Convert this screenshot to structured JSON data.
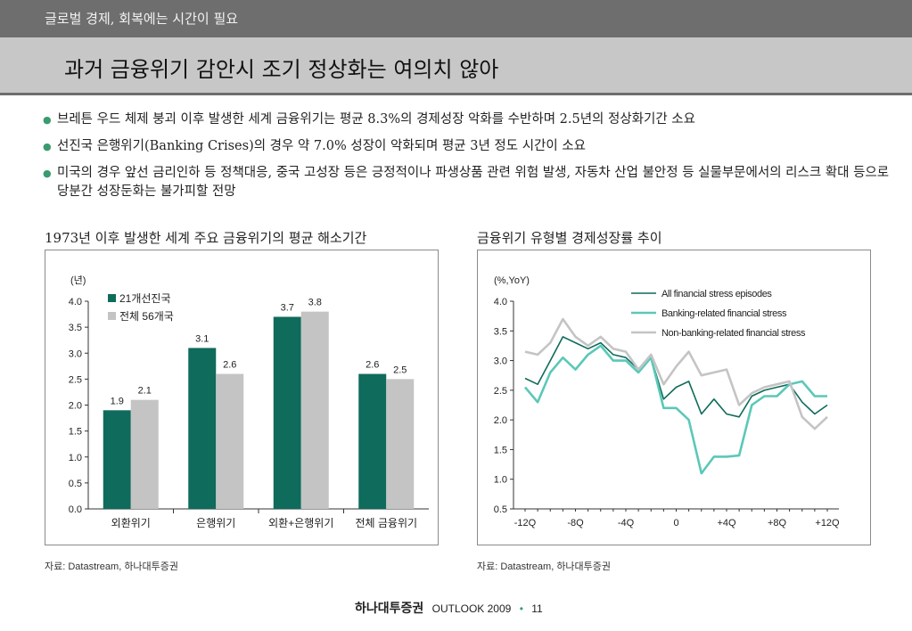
{
  "header": {
    "section": "글로벌 경제, 회복에는 시간이 필요",
    "title": "과거 금융위기 감안시 조기 정상화는 여의치 않아"
  },
  "bullets": [
    "브레튼 우드 체제 붕괴 이후 발생한 세계 금융위기는 평균 8.3%의 경제성장 악화를 수반하며 2.5년의 정상화기간 소요",
    "선진국 은행위기(Banking Crises)의 경우 약 7.0% 성장이 악화되며 평균 3년 정도 시간이 소요",
    "미국의 경우 앞선 금리인하 등 정책대응, 중국 고성장 등은 긍정적이나 파생상품 관련 위험 발생, 자동차 산업 불안정 등 실물부문에서의 리스크 확대 등으로 당분간 성장둔화는 불가피할 전망"
  ],
  "chart_data": [
    {
      "type": "bar",
      "title": "1973년 이후 발생한 세계 주요 금융위기의 평균 해소기간",
      "ylabel": "(년)",
      "categories": [
        "외환위기",
        "은행위기",
        "외환+은행위기",
        "전체 금융위기"
      ],
      "series": [
        {
          "name": "21개선진국",
          "values": [
            1.9,
            3.1,
            3.7,
            2.6
          ],
          "color": "#0f6b5b"
        },
        {
          "name": "전체 56개국",
          "values": [
            2.1,
            2.6,
            3.8,
            2.5
          ],
          "color": "#c4c4c4"
        }
      ],
      "ylim": [
        0,
        4
      ],
      "yticks": [
        "0.0",
        "0.5",
        "1.0",
        "1.5",
        "2.0",
        "2.5",
        "3.0",
        "3.5",
        "4.0"
      ],
      "legend": "top-left",
      "grid": false,
      "source": "자료: Datastream, 하나대투증권"
    },
    {
      "type": "line",
      "title": "금융위기 유형별 경제성장률 추이",
      "ylabel": "(%,YoY)",
      "x": [
        -12,
        -11,
        -10,
        -9,
        -8,
        -7,
        -6,
        -5,
        -4,
        -3,
        -2,
        -1,
        0,
        1,
        2,
        3,
        4,
        5,
        6,
        7,
        8,
        9,
        10,
        11,
        12
      ],
      "xticks": [
        "-12Q",
        "-8Q",
        "-4Q",
        "0",
        "+4Q",
        "+8Q",
        "+12Q"
      ],
      "series": [
        {
          "name": "All financial stress episodes",
          "color": "#0f6b5b",
          "values": [
            2.7,
            2.6,
            3.0,
            3.4,
            3.3,
            3.2,
            3.3,
            3.1,
            3.05,
            2.85,
            3.05,
            2.35,
            2.55,
            2.65,
            2.1,
            2.35,
            2.1,
            2.05,
            2.4,
            2.5,
            2.55,
            2.6,
            2.3,
            2.1,
            2.25
          ]
        },
        {
          "name": "Banking-related financial stress",
          "color": "#5bc8b8",
          "values": [
            2.55,
            2.3,
            2.8,
            3.05,
            2.85,
            3.1,
            3.25,
            3.0,
            3.0,
            2.8,
            3.05,
            2.2,
            2.2,
            2.0,
            1.1,
            1.38,
            1.38,
            1.4,
            2.25,
            2.4,
            2.4,
            2.6,
            2.65,
            2.4,
            2.4
          ]
        },
        {
          "name": "Non-banking-related financial stress",
          "color": "#c4c4c4",
          "values": [
            3.15,
            3.1,
            3.3,
            3.7,
            3.4,
            3.25,
            3.4,
            3.2,
            3.15,
            2.85,
            3.1,
            2.6,
            2.9,
            3.15,
            2.75,
            2.8,
            2.85,
            2.25,
            2.45,
            2.55,
            2.6,
            2.65,
            2.05,
            1.85,
            2.05
          ]
        }
      ],
      "ylim": [
        0.5,
        4.0
      ],
      "yticks": [
        "0.5",
        "1.0",
        "1.5",
        "2.0",
        "2.5",
        "3.0",
        "3.5",
        "4.0"
      ],
      "legend": "top-right",
      "grid": false,
      "source": "자료: Datastream, 하나대투증권"
    }
  ],
  "footer": {
    "brand": "하나대투증권",
    "report": "OUTLOOK 2009",
    "page": "11"
  }
}
